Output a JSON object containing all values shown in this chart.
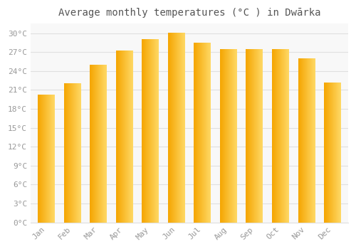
{
  "title": "Average monthly temperatures (°C ) in Dwārka",
  "months": [
    "Jan",
    "Feb",
    "Mar",
    "Apr",
    "May",
    "Jun",
    "Jul",
    "Aug",
    "Sep",
    "Oct",
    "Nov",
    "Dec"
  ],
  "values": [
    20.2,
    22.0,
    25.0,
    27.2,
    29.0,
    30.0,
    28.5,
    27.5,
    27.5,
    27.5,
    26.0,
    22.2
  ],
  "bar_color_left": "#F5A500",
  "bar_color_right": "#FFD966",
  "background_color": "#FFFFFF",
  "plot_bg_color": "#F8F8F8",
  "grid_color": "#E0E0E0",
  "text_color": "#999999",
  "title_color": "#555555",
  "ylim": [
    0,
    31.5
  ],
  "yticks": [
    0,
    3,
    6,
    9,
    12,
    15,
    18,
    21,
    24,
    27,
    30
  ],
  "ytick_labels": [
    "0°C",
    "3°C",
    "6°C",
    "9°C",
    "12°C",
    "15°C",
    "18°C",
    "21°C",
    "24°C",
    "27°C",
    "30°C"
  ],
  "title_fontsize": 10,
  "tick_fontsize": 8,
  "bar_width": 0.65
}
